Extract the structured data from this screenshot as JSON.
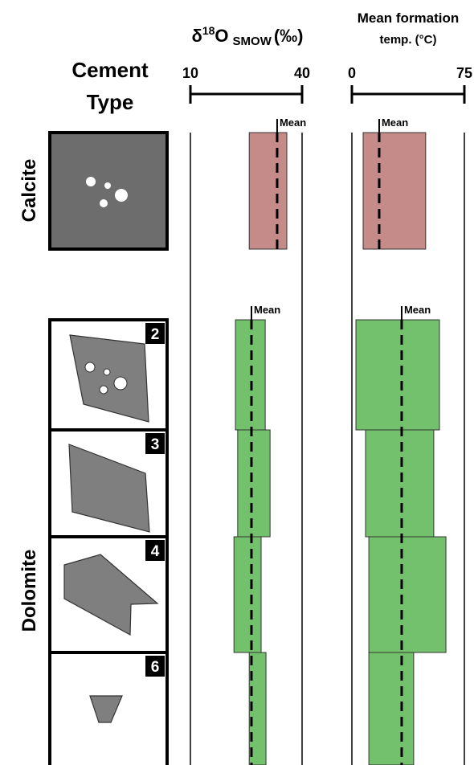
{
  "cement_column": {
    "title": [
      "Cement",
      "Type"
    ]
  },
  "oxygen_axis": {
    "title": {
      "symbol": "δ",
      "superscript": "18",
      "element": "O",
      "subscript": "SMOW",
      "unit": "(‰)"
    },
    "xlim": [
      10,
      40
    ],
    "xticks": [
      10,
      40
    ]
  },
  "temp_axis": {
    "title": [
      "Mean formation",
      "temp. (°C)"
    ],
    "xlim": [
      0,
      75
    ],
    "xticks": [
      0,
      75
    ]
  },
  "groups": [
    {
      "name": "Calcite",
      "mean_label": "Mean",
      "color": "#c48b88",
      "oxygen_mean": 33.3,
      "temp_mean": 18.2,
      "cements": [
        {
          "oxygen_range": [
            25.8,
            35.9
          ],
          "temp_range": [
            7.5,
            49.2
          ]
        }
      ]
    },
    {
      "name": "Dolomite",
      "mean_label": "Mean",
      "color": "#74c16d",
      "oxygen_mean": 26.4,
      "temp_mean": 33.2,
      "cements": [
        {
          "label": "2",
          "oxygen_range": [
            22.1,
            30.1
          ],
          "temp_range": [
            2.7,
            58.4
          ]
        },
        {
          "label": "3",
          "oxygen_range": [
            22.7,
            31.4
          ],
          "temp_range": [
            9.1,
            54.6
          ]
        },
        {
          "label": "4",
          "oxygen_range": [
            21.7,
            29.0
          ],
          "temp_range": [
            11.3,
            62.7
          ]
        },
        {
          "label": "6",
          "oxygen_range": [
            25.8,
            30.3
          ],
          "temp_range": [
            11.3,
            41.2
          ]
        }
      ]
    }
  ]
}
